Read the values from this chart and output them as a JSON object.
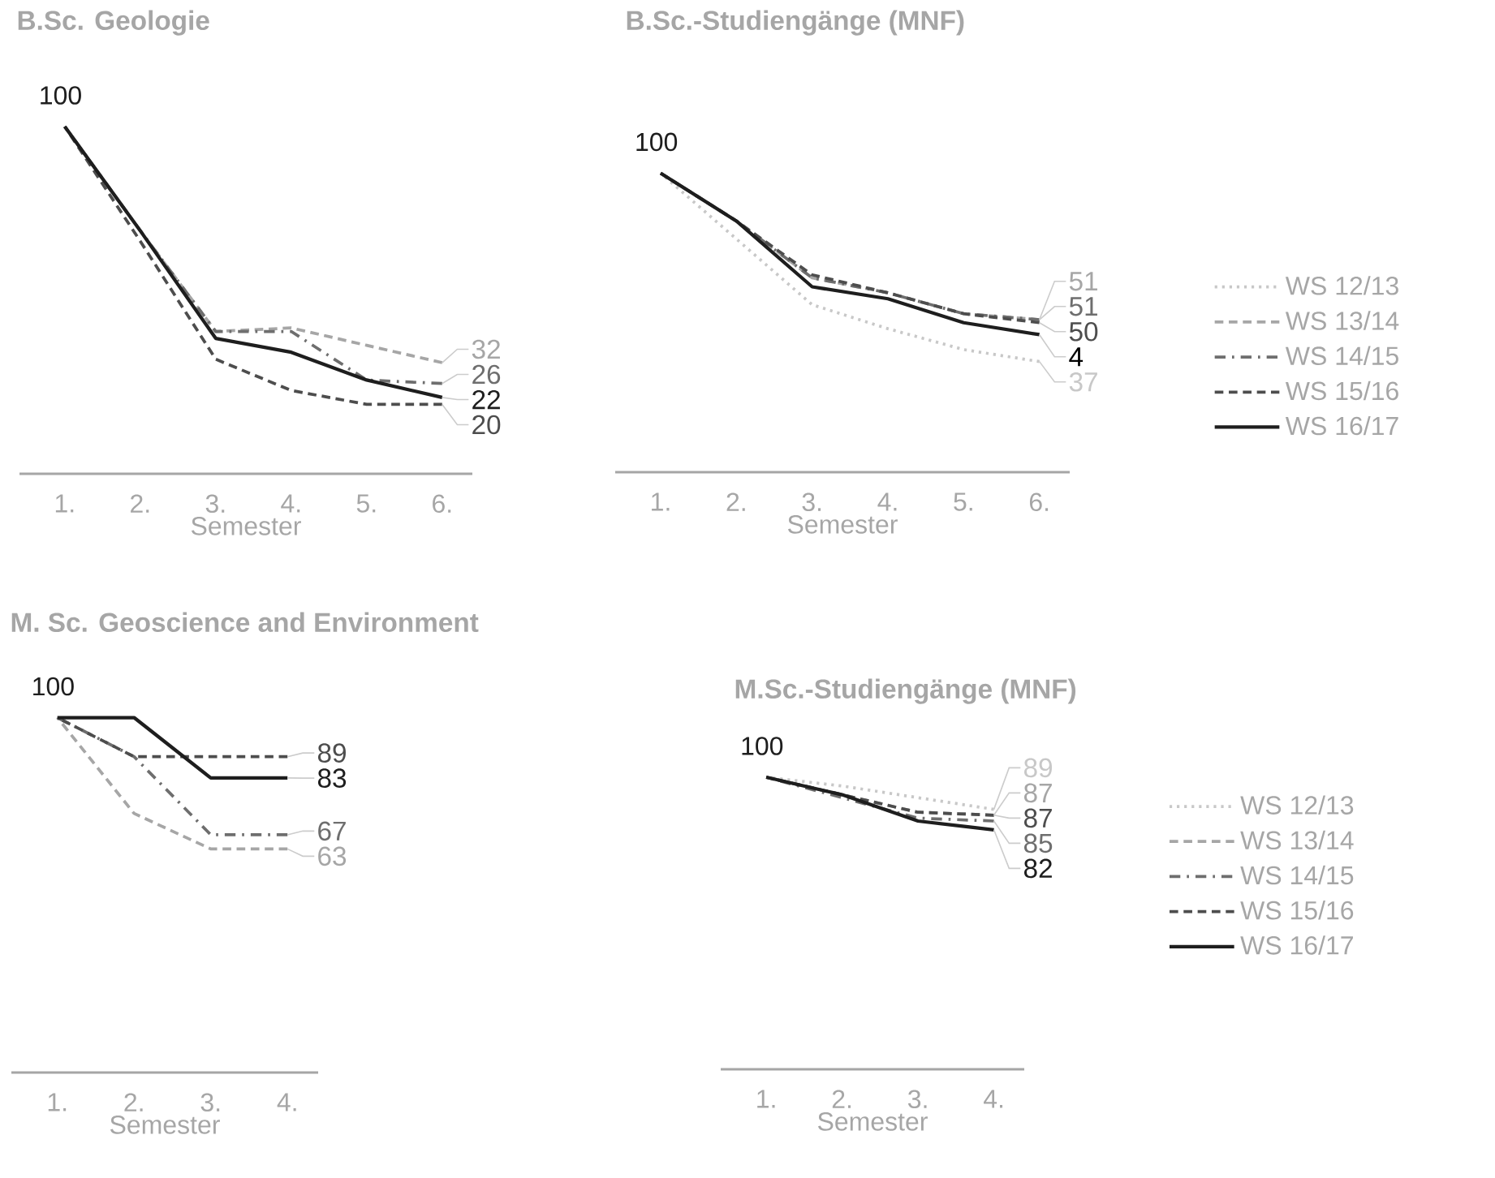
{
  "chart_data": [
    {
      "type": "line",
      "title": "B.Sc. Geologie",
      "xlabel": "Semester",
      "categories": [
        "1.",
        "2.",
        "3.",
        "4.",
        "5.",
        "6."
      ],
      "tick_labels": "x",
      "legend": false,
      "series": [
        {
          "color": "#a6a6a6",
          "line_style": "dashed",
          "values": [
            100,
            70,
            41,
            42,
            37,
            32
          ],
          "value_labels": [
            null,
            null,
            null,
            null,
            null,
            "32"
          ]
        },
        {
          "color": "#6e6e6e",
          "line_style": "dashdot",
          "values": [
            100,
            70,
            41,
            41,
            27,
            26
          ],
          "value_labels": [
            null,
            null,
            null,
            null,
            null,
            "26"
          ]
        },
        {
          "color": "#4d4d4d",
          "line_style": "dashed",
          "values": [
            100,
            67,
            33,
            24,
            20,
            20
          ],
          "value_labels": [
            null,
            null,
            null,
            null,
            null,
            "20"
          ]
        },
        {
          "color": "#1e1e1e",
          "line_style": "solid",
          "values": [
            100,
            70,
            39,
            35,
            27,
            22
          ],
          "value_labels": [
            "100",
            null,
            null,
            null,
            null,
            "22"
          ]
        }
      ]
    },
    {
      "type": "line",
      "title": "B.Sc.-Studiengänge (MNF)",
      "xlabel": "Semester",
      "categories": [
        "1.",
        "2.",
        "3.",
        "4.",
        "5.",
        "6."
      ],
      "tick_labels": "x",
      "legend": "right",
      "annotations": [
        {
          "text": "4",
          "x": "6.",
          "y": 46
        }
      ],
      "series": [
        {
          "name": "WS 12/13",
          "color": "#c8c8c8",
          "line_style": "dotted",
          "values": [
            100,
            78,
            56,
            48,
            41,
            37
          ],
          "value_labels": [
            null,
            null,
            null,
            null,
            null,
            "37"
          ]
        },
        {
          "name": "WS 13/14",
          "color": "#a6a6a6",
          "line_style": "dashed",
          "values": [
            100,
            84,
            65,
            60,
            53,
            51
          ],
          "value_labels": [
            null,
            null,
            null,
            null,
            null,
            "51"
          ]
        },
        {
          "name": "WS 14/15",
          "color": "#6e6e6e",
          "line_style": "dashdot",
          "values": [
            100,
            84,
            65,
            60,
            53,
            51
          ],
          "value_labels": [
            null,
            null,
            null,
            null,
            null,
            "51"
          ]
        },
        {
          "name": "WS 15/16",
          "color": "#4d4d4d",
          "line_style": "dashed",
          "values": [
            100,
            84,
            66,
            60,
            53,
            50
          ],
          "value_labels": [
            null,
            null,
            null,
            null,
            null,
            "50"
          ]
        },
        {
          "name": "WS 16/17",
          "color": "#1e1e1e",
          "line_style": "solid",
          "values": [
            100,
            84,
            62,
            58,
            50,
            46
          ],
          "value_labels": [
            "100",
            null,
            null,
            null,
            null,
            null
          ]
        }
      ]
    },
    {
      "type": "line",
      "title": "M. Sc. Geoscience and Environment",
      "xlabel": "Semester",
      "categories": [
        "1.",
        "2.",
        "3.",
        "4."
      ],
      "tick_labels": "x",
      "legend": false,
      "series": [
        {
          "color": "#a6a6a6",
          "line_style": "dashed",
          "values": [
            100,
            73,
            63,
            63
          ],
          "value_labels": [
            null,
            null,
            null,
            "63"
          ]
        },
        {
          "color": "#6e6e6e",
          "line_style": "dashdot",
          "values": [
            100,
            89,
            67,
            67
          ],
          "value_labels": [
            null,
            null,
            null,
            "67"
          ]
        },
        {
          "color": "#4d4d4d",
          "line_style": "dashed",
          "values": [
            100,
            89,
            89,
            89
          ],
          "value_labels": [
            null,
            null,
            null,
            "89"
          ]
        },
        {
          "color": "#1e1e1e",
          "line_style": "solid",
          "values": [
            100,
            100,
            83,
            83
          ],
          "value_labels": [
            "100",
            null,
            null,
            "83"
          ]
        }
      ]
    },
    {
      "type": "line",
      "title": "M.Sc.-Studiengänge (MNF)",
      "xlabel": "Semester",
      "categories": [
        "1.",
        "2.",
        "3.",
        "4."
      ],
      "tick_labels": "x",
      "legend": "right",
      "series": [
        {
          "name": "WS 12/13",
          "color": "#c8c8c8",
          "line_style": "dotted",
          "values": [
            100,
            97,
            93,
            89
          ],
          "value_labels": [
            null,
            null,
            null,
            "89"
          ]
        },
        {
          "name": "WS 13/14",
          "color": "#a6a6a6",
          "line_style": "dashed",
          "values": [
            100,
            94,
            88,
            87
          ],
          "value_labels": [
            null,
            null,
            null,
            "87"
          ]
        },
        {
          "name": "WS 14/15",
          "color": "#6e6e6e",
          "line_style": "dashdot",
          "values": [
            100,
            93,
            86,
            85
          ],
          "value_labels": [
            null,
            null,
            null,
            "85"
          ]
        },
        {
          "name": "WS 15/16",
          "color": "#4d4d4d",
          "line_style": "dashed",
          "values": [
            100,
            94,
            88,
            87
          ],
          "value_labels": [
            null,
            null,
            null,
            "87"
          ]
        },
        {
          "name": "WS 16/17",
          "color": "#1e1e1e",
          "line_style": "solid",
          "values": [
            100,
            94,
            85,
            82
          ],
          "value_labels": [
            "100",
            null,
            null,
            "82"
          ]
        }
      ]
    }
  ]
}
